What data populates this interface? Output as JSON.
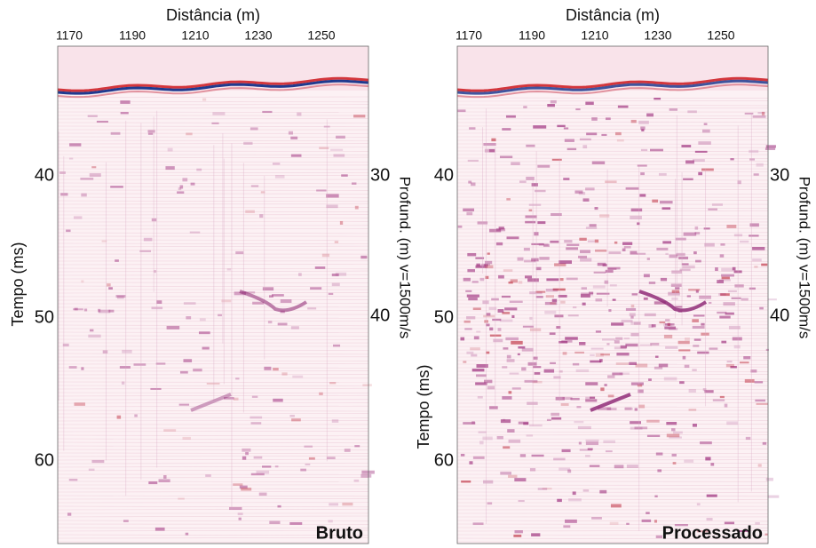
{
  "panels": [
    {
      "x_label": "Distância (m)",
      "x_ticks": [
        1170,
        1190,
        1210,
        1230,
        1250
      ],
      "y_label": "Tempo (ms)",
      "y_ticks": [
        40,
        50,
        60
      ],
      "y2_label": "Profund. (m) v=1500m/s",
      "y2_ticks": [
        30,
        40
      ],
      "caption": "Bruto"
    },
    {
      "x_label": "Distância (m)",
      "x_ticks": [
        1170,
        1190,
        1210,
        1230,
        1250
      ],
      "y_label": "Tempo (ms)",
      "y_ticks": [
        40,
        50,
        60
      ],
      "y2_label": "Profund. (m) v=1500m/s",
      "y2_ticks": [
        30,
        40
      ],
      "caption": "Processado"
    }
  ]
}
